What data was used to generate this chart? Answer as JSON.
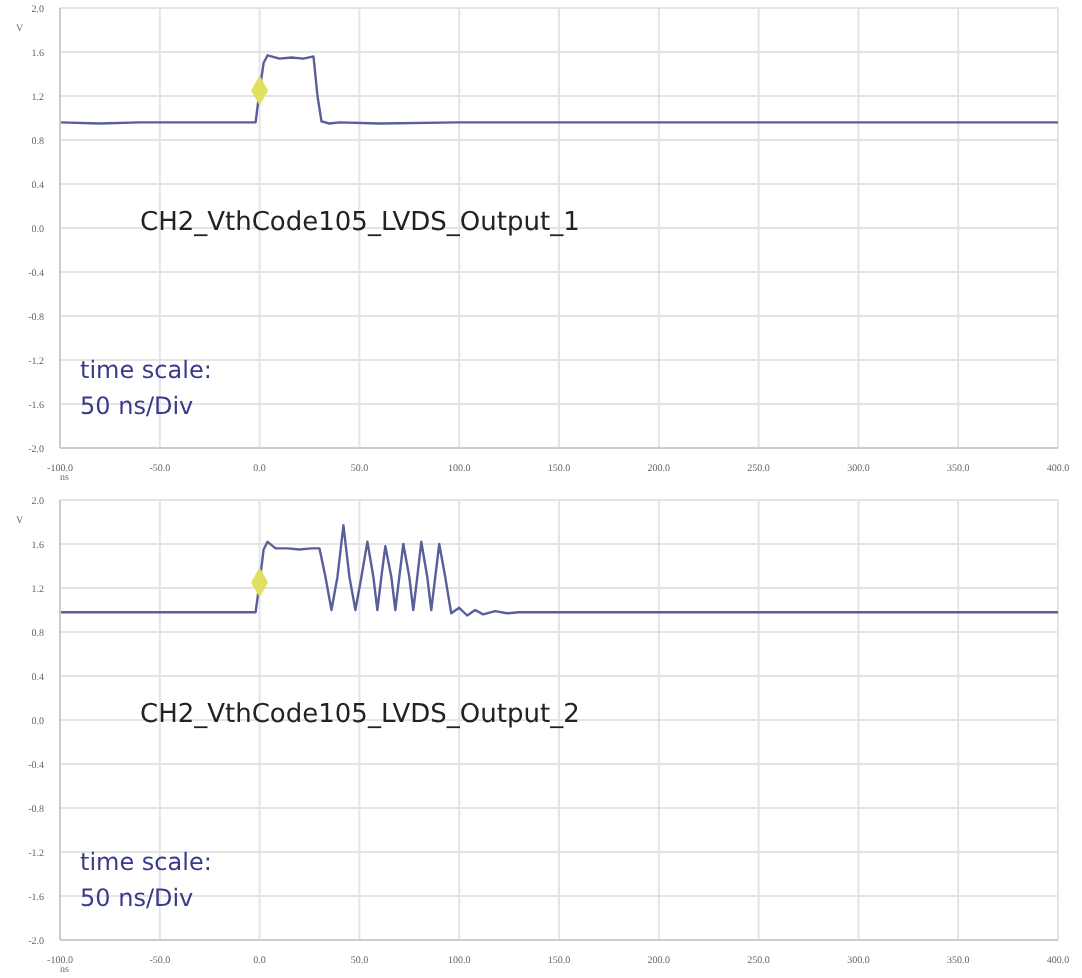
{
  "chart_data": [
    {
      "type": "line",
      "xlabel": "ns",
      "ylabel": "V",
      "annotations": [
        "CH2_VthCode105_LVDS_Output_1",
        "time scale:",
        "50 ns/Div"
      ],
      "xlim": [
        -100,
        400
      ],
      "ylim": [
        -2,
        2
      ],
      "xticks": [
        {
          "value": -100,
          "label": "-100.0"
        },
        {
          "value": -50,
          "label": "-50.0"
        },
        {
          "value": 0,
          "label": "0.0"
        },
        {
          "value": 50,
          "label": "50.0"
        },
        {
          "value": 100,
          "label": "100.0"
        },
        {
          "value": 150,
          "label": "150.0"
        },
        {
          "value": 200,
          "label": "200.0"
        },
        {
          "value": 250,
          "label": "250.0"
        },
        {
          "value": 300,
          "label": "300.0"
        },
        {
          "value": 350,
          "label": "350.0"
        },
        {
          "value": 400,
          "label": "400.0"
        }
      ],
      "yticks": [
        {
          "value": -2,
          "label": "-2.0"
        },
        {
          "value": -1.6,
          "label": "-1.6"
        },
        {
          "value": -1.2,
          "label": "-1.2"
        },
        {
          "value": -0.8,
          "label": "-0.8"
        },
        {
          "value": -0.4,
          "label": "-0.4"
        },
        {
          "value": 0,
          "label": "0.0"
        },
        {
          "value": 0.4,
          "label": "0.4"
        },
        {
          "value": 0.8,
          "label": "0.8"
        },
        {
          "value": 1.2,
          "label": "1.2"
        },
        {
          "value": 1.6,
          "label": "1.6"
        },
        {
          "value": 2,
          "label": "2.0"
        }
      ],
      "grid": true,
      "series": [
        {
          "color": "#5a5f9a",
          "x": [
            -100,
            -80,
            -60,
            -40,
            -20,
            -2,
            0,
            2,
            4,
            10,
            16,
            22,
            27,
            29,
            31,
            35,
            40,
            60,
            100,
            200,
            300,
            400
          ],
          "values": [
            0.96,
            0.95,
            0.96,
            0.96,
            0.96,
            0.96,
            1.25,
            1.5,
            1.57,
            1.54,
            1.55,
            1.54,
            1.56,
            1.2,
            0.97,
            0.95,
            0.96,
            0.95,
            0.96,
            0.96,
            0.96,
            0.96
          ]
        },
        {
          "type": "scatter",
          "marker": "diamond",
          "color": "#e0e060",
          "x": [
            0
          ],
          "values": [
            1.25
          ]
        }
      ]
    },
    {
      "type": "line",
      "xlabel": "ns",
      "ylabel": "V",
      "annotations": [
        "CH2_VthCode105_LVDS_Output_2",
        "time scale:",
        "50 ns/Div"
      ],
      "xlim": [
        -100,
        400
      ],
      "ylim": [
        -2,
        2
      ],
      "xticks": [
        {
          "value": -100,
          "label": "-100.0"
        },
        {
          "value": -50,
          "label": "-50.0"
        },
        {
          "value": 0,
          "label": "0.0"
        },
        {
          "value": 50,
          "label": "50.0"
        },
        {
          "value": 100,
          "label": "100.0"
        },
        {
          "value": 150,
          "label": "150.0"
        },
        {
          "value": 200,
          "label": "200.0"
        },
        {
          "value": 250,
          "label": "250.0"
        },
        {
          "value": 300,
          "label": "300.0"
        },
        {
          "value": 350,
          "label": "350.0"
        },
        {
          "value": 400,
          "label": "400.0"
        }
      ],
      "yticks": [
        {
          "value": -2,
          "label": "-2.0"
        },
        {
          "value": -1.6,
          "label": "-1.6"
        },
        {
          "value": -1.2,
          "label": "-1.2"
        },
        {
          "value": -0.8,
          "label": "-0.8"
        },
        {
          "value": -0.4,
          "label": "-0.4"
        },
        {
          "value": 0,
          "label": "0.0"
        },
        {
          "value": 0.4,
          "label": "0.4"
        },
        {
          "value": 0.8,
          "label": "0.8"
        },
        {
          "value": 1.2,
          "label": "1.2"
        },
        {
          "value": 1.6,
          "label": "1.6"
        },
        {
          "value": 2,
          "label": "2.0"
        }
      ],
      "grid": true,
      "series": [
        {
          "color": "#5a5f9a",
          "x": [
            -100,
            -60,
            -20,
            -2,
            0,
            2,
            4,
            8,
            14,
            20,
            26,
            30,
            33,
            36,
            39,
            42,
            45,
            48,
            51,
            54,
            57,
            59,
            61,
            63,
            66,
            68,
            70,
            72,
            75,
            77,
            79,
            81,
            84,
            86,
            88,
            90,
            93,
            96,
            100,
            104,
            108,
            112,
            118,
            124,
            130,
            200,
            300,
            400
          ],
          "values": [
            0.98,
            0.98,
            0.98,
            0.98,
            1.25,
            1.55,
            1.62,
            1.56,
            1.56,
            1.55,
            1.56,
            1.56,
            1.3,
            1.0,
            1.3,
            1.77,
            1.3,
            1.0,
            1.3,
            1.62,
            1.3,
            1.0,
            1.3,
            1.58,
            1.3,
            1.0,
            1.3,
            1.6,
            1.3,
            1.0,
            1.3,
            1.62,
            1.3,
            1.0,
            1.3,
            1.6,
            1.3,
            0.97,
            1.02,
            0.95,
            1.0,
            0.96,
            0.99,
            0.97,
            0.98,
            0.98,
            0.98,
            0.98
          ]
        },
        {
          "type": "scatter",
          "marker": "diamond",
          "color": "#e0e060",
          "x": [
            0
          ],
          "values": [
            1.25
          ]
        }
      ]
    }
  ]
}
